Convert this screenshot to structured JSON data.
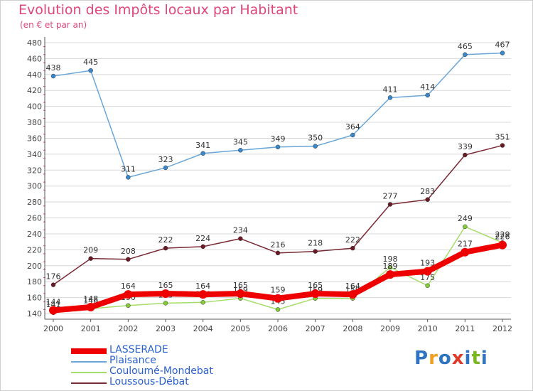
{
  "title": "Evolution des Impôts locaux par Habitant",
  "subtitle": "(en € et par an)",
  "logo": {
    "text": "Proxiti",
    "colors": [
      "#2f74c0",
      "#f0a020",
      "#2f74c0",
      "#e03a2a",
      "#2f74c0",
      "#7ab61f",
      "#2f74c0"
    ]
  },
  "colors": {
    "title": "#e0457a",
    "axis": "#555555",
    "grid": "#d8d8d8"
  },
  "chart_data": {
    "type": "line",
    "x": [
      "2000",
      "2001",
      "2002",
      "2003",
      "2004",
      "2005",
      "2006",
      "2007",
      "2008",
      "2009",
      "2010",
      "2011",
      "2012"
    ],
    "ylim": [
      140,
      480
    ],
    "yticks": [
      140,
      160,
      180,
      200,
      220,
      240,
      260,
      280,
      300,
      320,
      340,
      360,
      380,
      400,
      420,
      440,
      460,
      480
    ],
    "grid": true,
    "legend_position": "bottom-left",
    "series": [
      {
        "name": "Plaisance",
        "color": "#6aa6d8",
        "marker": "#3a88cc",
        "width": 1.5,
        "values": [
          438,
          445,
          311,
          323,
          341,
          345,
          349,
          350,
          364,
          411,
          414,
          465,
          467
        ],
        "labels": [
          "438",
          "445",
          "311",
          "323",
          "341",
          "345",
          "349",
          "350",
          "364",
          "411",
          "414",
          "465",
          "467"
        ]
      },
      {
        "name": "Loussous-Débat",
        "color": "#7a2a35",
        "marker": "#6b1a25",
        "width": 1.5,
        "values": [
          176,
          209,
          208,
          222,
          224,
          234,
          216,
          218,
          222,
          277,
          283,
          339,
          351
        ],
        "labels": [
          "176",
          "209",
          "208",
          "222",
          "224",
          "234",
          "216",
          "218",
          "222",
          "277",
          "283",
          "339",
          "351"
        ]
      },
      {
        "name": "Couloumé-Mondebat",
        "color": "#a6dd6a",
        "marker": "#86cc3a",
        "width": 1.5,
        "values": [
          141,
          146,
          150,
          153,
          154,
          159,
          145,
          159,
          159,
          198,
          175,
          249,
          229
        ],
        "labels": [
          "141",
          "146",
          "150",
          "153",
          "154",
          "159",
          "145",
          "159",
          "159",
          "198",
          "175",
          "249",
          "229"
        ]
      },
      {
        "name": "LASSERADE",
        "color": "#ee0000",
        "marker": "#ee0000",
        "width": 8,
        "values": [
          144,
          148,
          164,
          165,
          164,
          165,
          159,
          165,
          164,
          189,
          193,
          217,
          226
        ],
        "labels": [
          "144",
          "148",
          "164",
          "165",
          "164",
          "165",
          "159",
          "165",
          "164",
          "189",
          "193",
          "217",
          "226"
        ]
      }
    ],
    "legend": [
      {
        "name": "LASSERADE",
        "color": "#ee0000",
        "width": 8
      },
      {
        "name": "Plaisance",
        "color": "#6aa6d8",
        "width": 2
      },
      {
        "name": "Couloumé-Mondebat",
        "color": "#a6dd6a",
        "width": 2
      },
      {
        "name": "Loussous-Débat",
        "color": "#7a2a35",
        "width": 2
      }
    ]
  }
}
